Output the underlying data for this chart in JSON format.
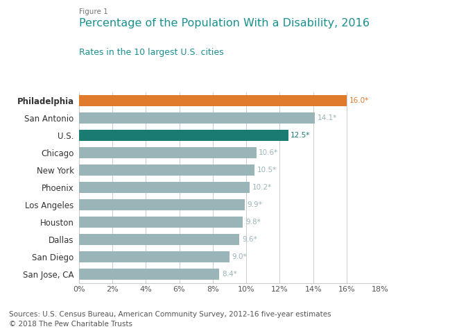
{
  "figure_label": "Figure 1",
  "title": "Percentage of the Population With a Disability, 2016",
  "subtitle": "Rates in the 10 largest U.S. cities",
  "categories": [
    "Philadelphia",
    "San Antonio",
    "U.S.",
    "Chicago",
    "New York",
    "Phoenix",
    "Los Angeles",
    "Houston",
    "Dallas",
    "San Diego",
    "San Jose, CA"
  ],
  "values": [
    16.0,
    14.1,
    12.5,
    10.6,
    10.5,
    10.2,
    9.9,
    9.8,
    9.6,
    9.0,
    8.4
  ],
  "labels": [
    "16.0*",
    "14.1*",
    "12.5*",
    "10.6*",
    "10.5*",
    "10.2*",
    "9.9*",
    "9.8*",
    "9.6*",
    "9.0*",
    "8.4*"
  ],
  "bar_colors": [
    "#e07b2e",
    "#9ab5b8",
    "#1a7b72",
    "#9ab5b8",
    "#9ab5b8",
    "#9ab5b8",
    "#9ab5b8",
    "#9ab5b8",
    "#9ab5b8",
    "#9ab5b8",
    "#9ab5b8"
  ],
  "label_colors": [
    "#e07b2e",
    "#9ab5b8",
    "#1a7b72",
    "#9ab5b8",
    "#9ab5b8",
    "#9ab5b8",
    "#9ab5b8",
    "#9ab5b8",
    "#9ab5b8",
    "#9ab5b8",
    "#9ab5b8"
  ],
  "xlim": [
    0,
    18
  ],
  "xticks": [
    0,
    2,
    4,
    6,
    8,
    10,
    12,
    14,
    16,
    18
  ],
  "xtick_labels": [
    "0%",
    "2%",
    "4%",
    "6%",
    "8%",
    "10%",
    "12%",
    "14%",
    "16%",
    "18%"
  ],
  "figure_label_color": "#777777",
  "title_color": "#1a9090",
  "subtitle_color": "#1a9090",
  "source_text": "Sources: U.S. Census Bureau, American Community Survey, 2012-16 five-year estimates\n© 2018 The Pew Charitable Trusts",
  "background_color": "#ffffff",
  "grid_color": "#cccccc"
}
